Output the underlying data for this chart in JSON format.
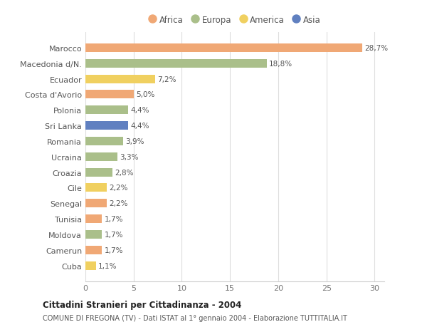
{
  "countries": [
    "Marocco",
    "Macedonia d/N.",
    "Ecuador",
    "Costa d'Avorio",
    "Polonia",
    "Sri Lanka",
    "Romania",
    "Ucraina",
    "Croazia",
    "Cile",
    "Senegal",
    "Tunisia",
    "Moldova",
    "Camerun",
    "Cuba"
  ],
  "values": [
    28.7,
    18.8,
    7.2,
    5.0,
    4.4,
    4.4,
    3.9,
    3.3,
    2.8,
    2.2,
    2.2,
    1.7,
    1.7,
    1.7,
    1.1
  ],
  "labels": [
    "28,7%",
    "18,8%",
    "7,2%",
    "5,0%",
    "4,4%",
    "4,4%",
    "3,9%",
    "3,3%",
    "2,8%",
    "2,2%",
    "2,2%",
    "1,7%",
    "1,7%",
    "1,7%",
    "1,1%"
  ],
  "continents": [
    "Africa",
    "Europa",
    "America",
    "Africa",
    "Europa",
    "Asia",
    "Europa",
    "Europa",
    "Europa",
    "America",
    "Africa",
    "Africa",
    "Europa",
    "Africa",
    "America"
  ],
  "colors": {
    "Africa": "#F0A875",
    "Europa": "#AABF8A",
    "America": "#F0D060",
    "Asia": "#6080C0"
  },
  "legend_order": [
    "Africa",
    "Europa",
    "America",
    "Asia"
  ],
  "title": "Cittadini Stranieri per Cittadinanza - 2004",
  "subtitle": "COMUNE DI FREGONA (TV) - Dati ISTAT al 1° gennaio 2004 - Elaborazione TUTTITALIA.IT",
  "xlim": [
    0,
    31
  ],
  "xticks": [
    0,
    5,
    10,
    15,
    20,
    25,
    30
  ],
  "bg_color": "#FFFFFF",
  "plot_bg_color": "#FFFFFF",
  "grid_color": "#DDDDDD",
  "bar_height": 0.55
}
